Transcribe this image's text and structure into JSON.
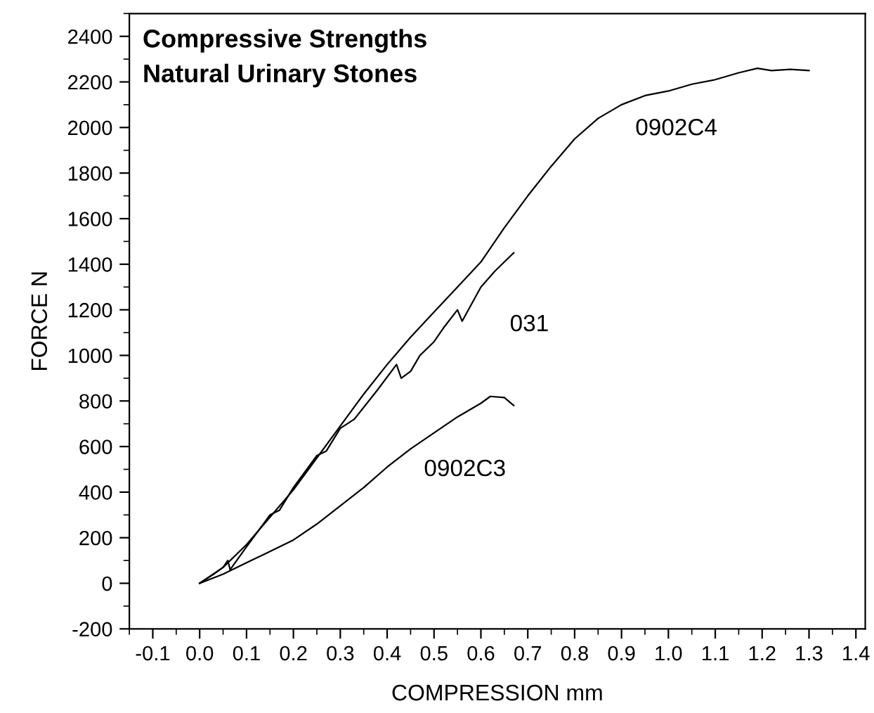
{
  "chart_data": {
    "type": "line",
    "title": "Compressive Strengths\nNatural Urinary Stones",
    "xlabel": "COMPRESSION mm",
    "ylabel": "FORCE N",
    "xlim": [
      -0.15,
      1.42
    ],
    "ylim": [
      -200,
      2500
    ],
    "xticks": [
      -0.1,
      {
        "value": 0,
        "label": "0.0"
      },
      0.1,
      0.2,
      0.3,
      0.4,
      0.5,
      0.6,
      0.7,
      0.8,
      0.9,
      {
        "value": 1,
        "label": "1.0"
      },
      1.1,
      1.2,
      1.3,
      1.4
    ],
    "yticks": [
      -200,
      0,
      200,
      400,
      600,
      800,
      1000,
      1200,
      1400,
      1600,
      1800,
      2000,
      2200,
      2400
    ],
    "grid": false,
    "marker": "none",
    "line_style": "solid",
    "series": [
      {
        "name": "0902C4",
        "color": "#000000",
        "x": [
          0,
          0.05,
          0.1,
          0.15,
          0.2,
          0.25,
          0.3,
          0.35,
          0.4,
          0.45,
          0.5,
          0.55,
          0.6,
          0.65,
          0.7,
          0.75,
          0.8,
          0.85,
          0.9,
          0.95,
          1.0,
          1.05,
          1.1,
          1.15,
          1.19,
          1.22,
          1.26,
          1.3
        ],
        "values": [
          0,
          70,
          170,
          290,
          410,
          550,
          690,
          830,
          960,
          1080,
          1190,
          1300,
          1410,
          1560,
          1700,
          1830,
          1950,
          2040,
          2100,
          2140,
          2160,
          2190,
          2210,
          2240,
          2260,
          2250,
          2255,
          2250
        ]
      },
      {
        "name": "031",
        "color": "#000000",
        "x": [
          0,
          0.03,
          0.05,
          0.06,
          0.065,
          0.1,
          0.15,
          0.17,
          0.2,
          0.25,
          0.27,
          0.3,
          0.33,
          0.38,
          0.42,
          0.43,
          0.45,
          0.47,
          0.5,
          0.52,
          0.55,
          0.56,
          0.6,
          0.63,
          0.67
        ],
        "values": [
          0,
          40,
          70,
          100,
          60,
          160,
          300,
          320,
          420,
          560,
          580,
          680,
          720,
          850,
          960,
          900,
          930,
          1000,
          1060,
          1120,
          1200,
          1150,
          1300,
          1370,
          1450
        ]
      },
      {
        "name": "0902C3",
        "color": "#000000",
        "x": [
          0,
          0.05,
          0.1,
          0.14,
          0.2,
          0.25,
          0.3,
          0.35,
          0.4,
          0.45,
          0.5,
          0.55,
          0.6,
          0.62,
          0.65,
          0.67
        ],
        "values": [
          0,
          40,
          90,
          130,
          190,
          260,
          340,
          420,
          510,
          590,
          660,
          730,
          790,
          820,
          815,
          780
        ]
      }
    ]
  }
}
